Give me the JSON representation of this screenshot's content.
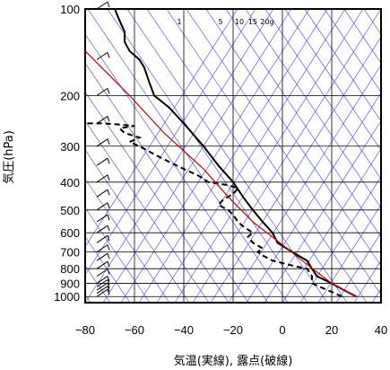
{
  "chart_data": {
    "type": "line",
    "xlabel": "気温(実線), 露点(破線)",
    "ylabel": "気圧(hPa)",
    "xlim": [
      -80,
      40
    ],
    "ylim": [
      1050,
      100
    ],
    "y_scale": "log",
    "x_ticks": [
      "−80",
      "−60",
      "−40",
      "−20",
      "0",
      "20",
      "40"
    ],
    "y_ticks": [
      "100",
      "200",
      "300",
      "400",
      "500",
      "600",
      "700",
      "800",
      "900",
      "1000"
    ],
    "mixing_ratio_labels": [
      "1",
      "5",
      "10",
      "15",
      "20g"
    ],
    "series": [
      {
        "line": "solid",
        "color": "#000000",
        "points": [
          [
            30,
            1000
          ],
          [
            25,
            950
          ],
          [
            20,
            900
          ],
          [
            14,
            850
          ],
          [
            12,
            800
          ],
          [
            10,
            750
          ],
          [
            4,
            700
          ],
          [
            -2,
            650
          ],
          [
            -4,
            600
          ],
          [
            -8,
            550
          ],
          [
            -12,
            500
          ],
          [
            -16,
            450
          ],
          [
            -20,
            400
          ],
          [
            -26,
            350
          ],
          [
            -32,
            300
          ],
          [
            -40,
            250
          ],
          [
            -46,
            220
          ],
          [
            -52,
            200
          ],
          [
            -54,
            180
          ],
          [
            -56,
            160
          ],
          [
            -58,
            150
          ],
          [
            -62,
            140
          ],
          [
            -64,
            130
          ],
          [
            -64,
            120
          ],
          [
            -66,
            110
          ],
          [
            -68,
            100
          ]
        ]
      },
      {
        "line": "dashed",
        "color": "#000000",
        "points": [
          [
            24,
            1000
          ],
          [
            22,
            980
          ],
          [
            12,
            900
          ],
          [
            12,
            850
          ],
          [
            10,
            800
          ],
          [
            4,
            780
          ],
          [
            -4,
            750
          ],
          [
            -8,
            720
          ],
          [
            -10,
            700
          ],
          [
            -8,
            680
          ],
          [
            -12,
            650
          ],
          [
            -14,
            620
          ],
          [
            -12,
            600
          ],
          [
            -16,
            570
          ],
          [
            -18,
            550
          ],
          [
            -20,
            520
          ],
          [
            -22,
            500
          ],
          [
            -26,
            480
          ],
          [
            -24,
            460
          ],
          [
            -20,
            440
          ],
          [
            -18,
            420
          ],
          [
            -22,
            410
          ],
          [
            -30,
            400
          ],
          [
            -34,
            380
          ],
          [
            -40,
            360
          ],
          [
            -46,
            340
          ],
          [
            -52,
            320
          ],
          [
            -58,
            300
          ],
          [
            -62,
            290
          ],
          [
            -58,
            280
          ],
          [
            -64,
            270
          ],
          [
            -66,
            260
          ],
          [
            -60,
            255
          ],
          [
            -72,
            250
          ],
          [
            -80,
            250
          ]
        ]
      },
      {
        "line": "solid",
        "color": "#cc0000",
        "points": [
          [
            30,
            1000
          ],
          [
            20,
            900
          ],
          [
            8,
            750
          ],
          [
            -2,
            640
          ],
          [
            -12,
            550
          ],
          [
            -22,
            450
          ],
          [
            -32,
            360
          ],
          [
            -48,
            270
          ],
          [
            -62,
            200
          ],
          [
            -80,
            140
          ]
        ]
      }
    ],
    "wind_barbs": "left edge, 100–1000 hPa",
    "grid": true
  }
}
